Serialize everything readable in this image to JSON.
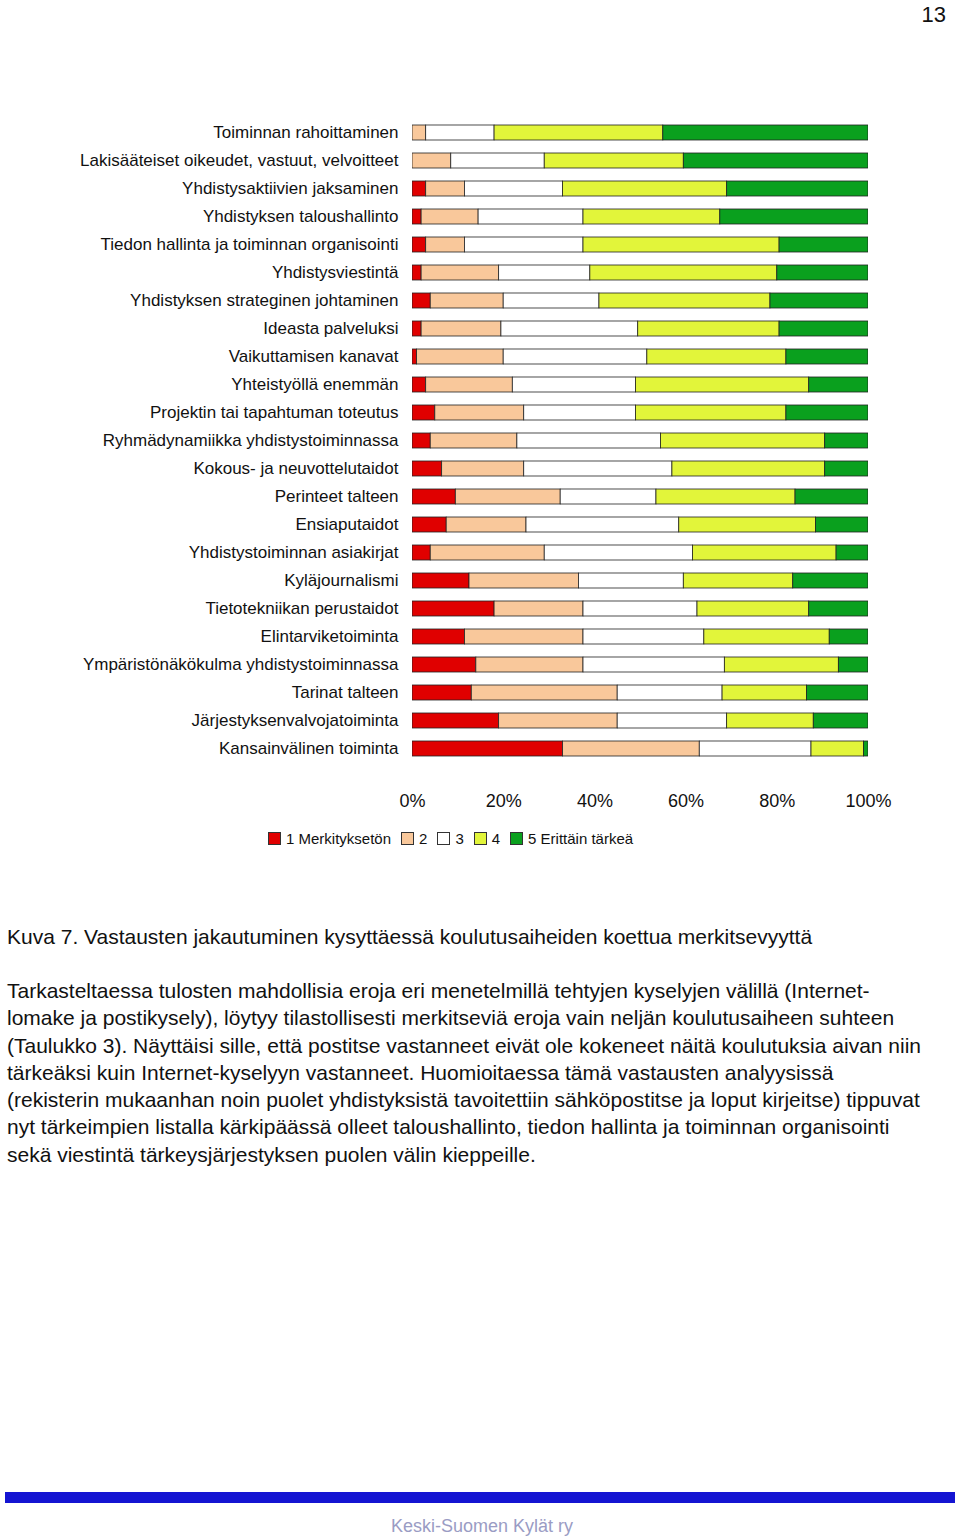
{
  "page_number": "13",
  "chart_data": {
    "type": "bar",
    "orientation": "horizontal",
    "stacked": true,
    "legend": "bottom",
    "grid": false,
    "categories": [
      "Toiminnan rahoittaminen",
      "Lakisääteiset oikeudet, vastuut, velvoitteet",
      "Yhdistysaktiivien jaksaminen",
      "Yhdistyksen taloushallinto",
      "Tiedon hallinta ja toiminnan organisointi",
      "Yhdistysviestintä",
      "Yhdistyksen strateginen johtaminen",
      "Ideasta palveluksi",
      "Vaikuttamisen kanavat",
      "Yhteistyöllä enemmän",
      "Projektin tai tapahtuman toteutus",
      "Ryhmädynamiikka yhdistystoiminnassa",
      "Kokous- ja neuvottelutaidot",
      "Perinteet talteen",
      "Ensiaputaidot",
      "Yhdistystoiminnan asiakirjat",
      "Kyläjournalismi",
      "Tietotekniikan perustaidot",
      "Elintarviketoiminta",
      "Ympäristönäkökulma yhdistystoiminnassa",
      "Tarinat talteen",
      "Järjestyksenvalvojatoiminta",
      "Kansainvälinen toiminta"
    ],
    "series": [
      {
        "name": "1 Merkityksetön",
        "color": "#e00000",
        "values": [
          0,
          0,
          3,
          2,
          3,
          2,
          4,
          2,
          1,
          3,
          5,
          4,
          6.5,
          9.5,
          7.5,
          4,
          12.5,
          18,
          11.5,
          14,
          13,
          19,
          33
        ]
      },
      {
        "name": "2",
        "color": "#f9c89b",
        "values": [
          3,
          8.5,
          8.5,
          12.5,
          8.5,
          17,
          16,
          17.5,
          19,
          19,
          19.5,
          19,
          18,
          23,
          17.5,
          25,
          24,
          19.5,
          26,
          23.5,
          32,
          26,
          30
        ]
      },
      {
        "name": "3",
        "color": "#ffffff",
        "values": [
          15,
          20.5,
          21.5,
          23,
          26,
          20,
          21,
          30,
          31.5,
          27,
          24.5,
          31.5,
          32.5,
          21,
          33.5,
          32.5,
          23,
          25,
          26.5,
          31,
          23,
          24,
          24.5
        ]
      },
      {
        "name": "4",
        "color": "#e2f53a",
        "values": [
          37,
          30.5,
          36,
          30,
          43,
          41,
          37.5,
          31,
          30.5,
          38,
          33,
          36,
          33.5,
          30.5,
          30,
          31.5,
          24,
          24.5,
          27.5,
          25,
          18.5,
          19,
          11.5
        ]
      },
      {
        "name": "5 Erittäin tärkeä",
        "color": "#0aa01e",
        "values": [
          45,
          40.5,
          31,
          32.5,
          19.5,
          20,
          21.5,
          19.5,
          18,
          13,
          18,
          9.5,
          9.5,
          16,
          11.5,
          7,
          16.5,
          13,
          8.5,
          6.5,
          13.5,
          12,
          1
        ]
      }
    ],
    "xlim": [
      0,
      100
    ],
    "xticks": [
      {
        "value": 0,
        "label": "0%"
      },
      {
        "value": 20,
        "label": "20%"
      },
      {
        "value": 40,
        "label": "40%"
      },
      {
        "value": 60,
        "label": "60%"
      },
      {
        "value": 80,
        "label": "80%"
      },
      {
        "value": 100,
        "label": "100%"
      }
    ]
  },
  "caption": "Kuva 7. Vastausten jakautuminen kysyttäessä koulutusaiheiden koettua merkitsevyyttä",
  "paragraph": "Tarkasteltaessa tulosten mahdollisia eroja eri menetelmillä tehtyjen kyselyjen välillä (Internet-lomake ja postikysely), löytyy tilastollisesti merkitseviä eroja vain neljän koulutusaiheen suhteen (Taulukko 3). Näyttäisi sille, että postitse vastanneet eivät ole kokeneet näitä koulutuksia aivan niin tärkeäksi kuin Internet-kyselyyn vastanneet. Huomioitaessa tämä vastausten analyysissä (rekisterin mukaanhan noin puolet yhdistyksistä tavoitettiin sähköpostitse ja loput kirjeitse) tippuvat nyt tärkeimpien listalla kärkipäässä olleet taloushallinto, tiedon hallinta ja toiminnan organisointi sekä viestintä tärkeysjärjestyksen puolen välin kieppeille.",
  "footer": "Keski-Suomen Kylät ry"
}
